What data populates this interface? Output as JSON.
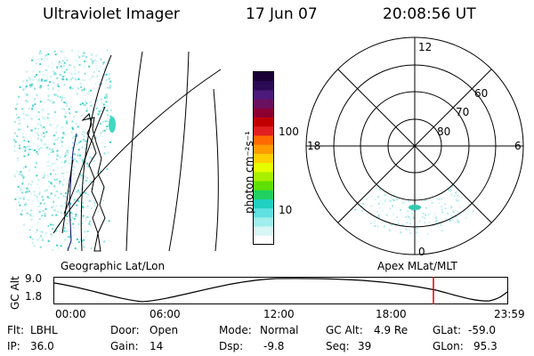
{
  "header": {
    "instrument": "Ultraviolet Imager",
    "date": "17 Jun 07",
    "time": "20:08:56 UT"
  },
  "geo_panel": {
    "label": "Geographic Lat/Lon"
  },
  "colorbar": {
    "unit_label": "photon cm⁻²s⁻¹",
    "ticks": [
      "100",
      "10"
    ],
    "colors": [
      "#1a0033",
      "#2a0a55",
      "#4b1a7a",
      "#6a1060",
      "#8b0030",
      "#c00000",
      "#e02020",
      "#ff6a00",
      "#ff9a00",
      "#ffd000",
      "#e6ff00",
      "#a8f000",
      "#5fe000",
      "#20d060",
      "#20d0c0",
      "#60e0e0",
      "#a0eeee",
      "#d8f6f6",
      "#ffffff"
    ]
  },
  "polar_panel": {
    "label": "Apex MLat/MLT",
    "mlt_labels": {
      "top": "12",
      "bottom": "0",
      "left": "18",
      "right": "6"
    },
    "mlat_labels": [
      "60",
      "70",
      "80"
    ]
  },
  "altitude_plot": {
    "ylabel": "GC Alt",
    "yticks": [
      "9.0",
      "1.8"
    ],
    "xticks": [
      "00:00",
      "06:00",
      "12:00",
      "18:00",
      "23:59"
    ],
    "current_time_color": "#e00000"
  },
  "info": {
    "flt_label": "Flt:",
    "flt_value": "LBHL",
    "ip_label": "IP:",
    "ip_value": "36.0",
    "door_label": "Door:",
    "door_value": "Open",
    "gain_label": "Gain:",
    "gain_value": "14",
    "mode_label": "Mode:",
    "mode_value": "Normal",
    "dsp_label": "Dsp:",
    "dsp_value": "-9.8",
    "gcalt_label": "GC Alt:",
    "gcalt_value": "4.9 Re",
    "seq_label": "Seq:",
    "seq_value": "39",
    "glat_label": "GLat:",
    "glat_value": "-59.0",
    "glon_label": "GLon:",
    "glon_value": "95.3"
  }
}
